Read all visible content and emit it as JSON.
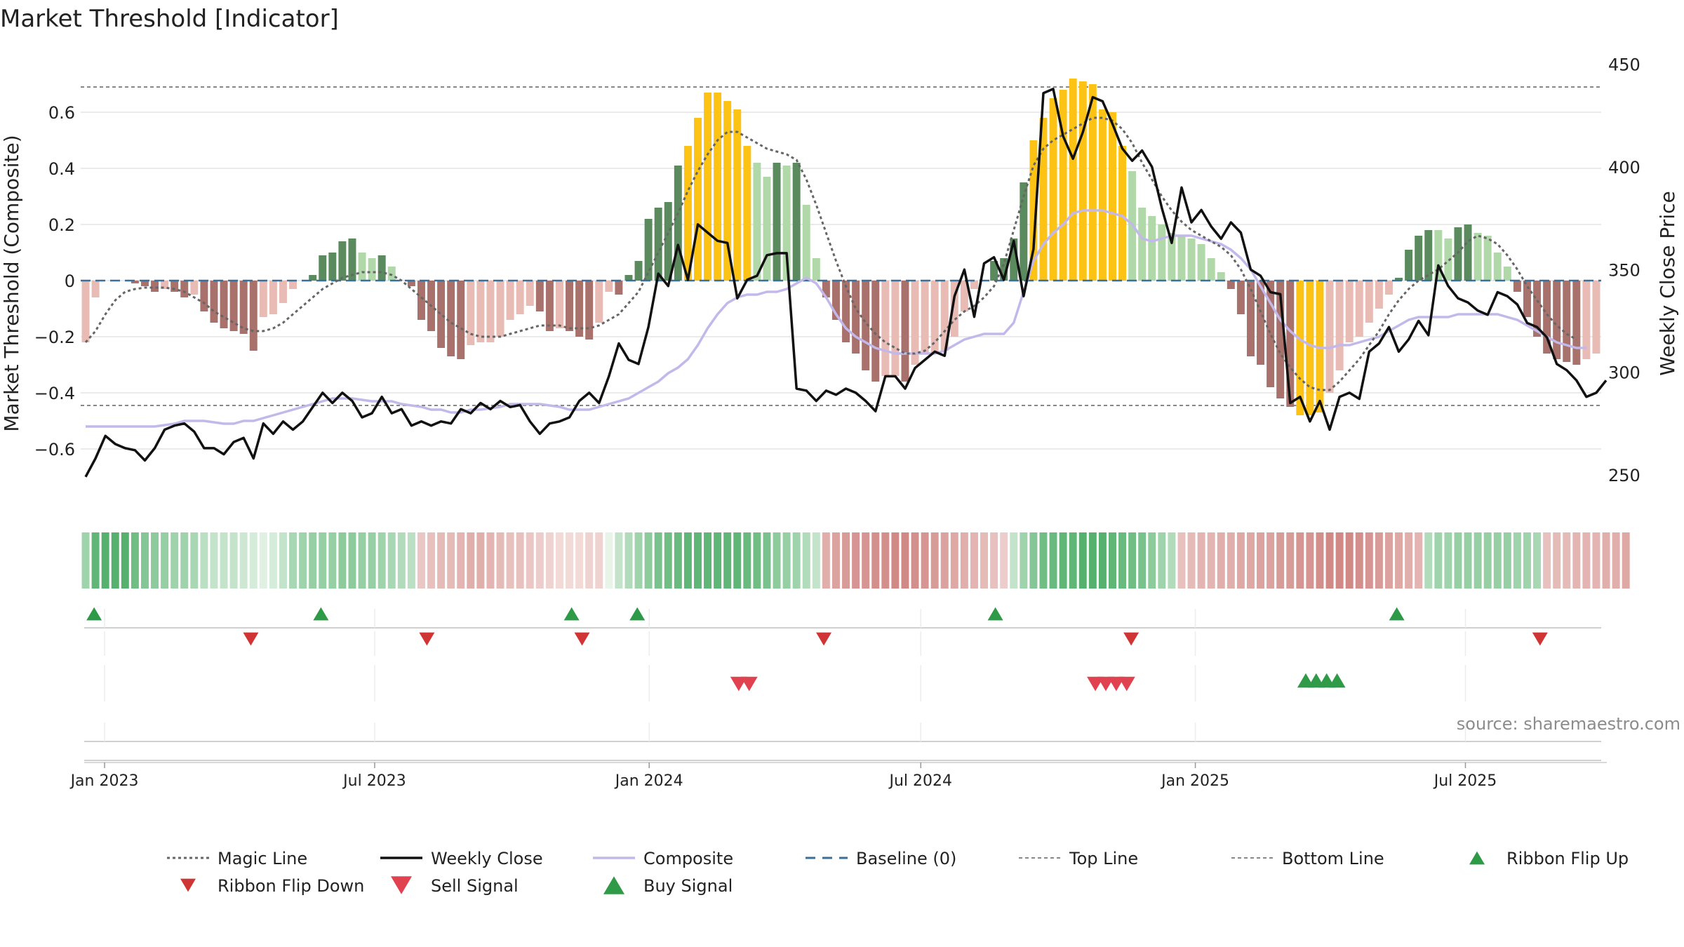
{
  "chart_data": {
    "type": "bar",
    "title": "Market Threshold [Indicator]",
    "ylabel": "Market Threshold (Composite)",
    "y2label": "Weekly Close Price",
    "ylim": [
      -0.78,
      0.8
    ],
    "y2lim": [
      238,
      454
    ],
    "yticks": [
      -0.6,
      -0.4,
      -0.2,
      0,
      0.2,
      0.4,
      0.6
    ],
    "ytick_labels": [
      "−0.6",
      "−0.4",
      "−0.2",
      "0",
      "0.2",
      "0.4",
      "0.6"
    ],
    "y2ticks": [
      250,
      300,
      350,
      400,
      450
    ],
    "y2tick_labels": [
      "250",
      "300",
      "350",
      "400",
      "450"
    ],
    "x_start": "2022-12-16",
    "x_end": "2025-09-30",
    "xticks": [
      {
        "date": "2023-01-01",
        "label": "Jan 2023"
      },
      {
        "date": "2023-07-01",
        "label": "Jul 2023"
      },
      {
        "date": "2024-01-01",
        "label": "Jan 2024"
      },
      {
        "date": "2024-07-01",
        "label": "Jul 2024"
      },
      {
        "date": "2025-01-01",
        "label": "Jan 2025"
      },
      {
        "date": "2025-07-01",
        "label": "Jul 2025"
      }
    ],
    "top_line": 0.69,
    "bottom_line": -0.445,
    "baseline": 0,
    "composite_bars": [
      -0.22,
      -0.06,
      0,
      0,
      0,
      -0.01,
      -0.02,
      -0.04,
      -0.03,
      -0.04,
      -0.06,
      -0.05,
      -0.11,
      -0.15,
      -0.17,
      -0.18,
      -0.19,
      -0.25,
      -0.13,
      -0.12,
      -0.08,
      -0.03,
      0,
      0.02,
      0.09,
      0.1,
      0.14,
      0.15,
      0.1,
      0.08,
      0.09,
      0.05,
      0,
      -0.02,
      -0.14,
      -0.18,
      -0.24,
      -0.27,
      -0.28,
      -0.23,
      -0.22,
      -0.22,
      -0.2,
      -0.14,
      -0.12,
      -0.09,
      -0.11,
      -0.18,
      -0.17,
      -0.18,
      -0.2,
      -0.21,
      -0.15,
      -0.04,
      -0.05,
      0.02,
      0.07,
      0.22,
      0.26,
      0.28,
      0.41,
      0.48,
      0.58,
      0.67,
      0.67,
      0.64,
      0.61,
      0.48,
      0.42,
      0.37,
      0.42,
      0.41,
      0.42,
      0.27,
      0.08,
      -0.06,
      -0.14,
      -0.22,
      -0.26,
      -0.32,
      -0.36,
      -0.34,
      -0.34,
      -0.36,
      -0.3,
      -0.26,
      -0.26,
      -0.25,
      -0.2,
      -0.11,
      -0.03,
      0,
      0.07,
      0.08,
      0.15,
      0.35,
      0.5,
      0.58,
      0.65,
      0.68,
      0.72,
      0.71,
      0.7,
      0.61,
      0.6,
      0.48,
      0.39,
      0.26,
      0.23,
      0.2,
      0.17,
      0.16,
      0.15,
      0.13,
      0.08,
      0.03,
      -0.03,
      -0.12,
      -0.27,
      -0.3,
      -0.38,
      -0.42,
      -0.45,
      -0.48,
      -0.48,
      -0.47,
      -0.4,
      -0.32,
      -0.22,
      -0.2,
      -0.15,
      -0.1,
      -0.05,
      0.01,
      0.11,
      0.16,
      0.18,
      0.18,
      0.15,
      0.19,
      0.2,
      0.17,
      0.16,
      0.1,
      0.05,
      -0.04,
      -0.13,
      -0.2,
      -0.26,
      -0.28,
      -0.29,
      -0.3,
      -0.28,
      -0.26
    ],
    "bar_colors": {
      "strong_pos": "#5a8a5d",
      "weak_pos": "#b1d8a9",
      "strong_neg": "#a8716b",
      "weak_neg": "#e8bbb5",
      "extreme": "#fcc315"
    },
    "weekly_close": [
      249,
      258,
      269,
      265,
      263,
      262,
      257,
      263,
      272,
      274,
      275,
      271,
      263,
      263,
      260,
      266,
      268,
      258,
      275,
      270,
      276,
      272,
      276,
      283,
      290,
      285,
      290,
      286,
      278,
      280,
      288,
      280,
      282,
      274,
      276,
      274,
      276,
      275,
      282,
      280,
      285,
      282,
      286,
      283,
      284,
      276,
      270,
      275,
      276,
      278,
      286,
      290,
      285,
      298,
      314,
      306,
      304,
      322,
      348,
      342,
      362,
      345,
      372,
      368,
      364,
      363,
      336,
      345,
      347,
      357,
      358,
      358,
      292,
      291,
      286,
      291,
      289,
      292,
      290,
      286,
      281,
      298,
      298,
      292,
      302,
      306,
      310,
      308,
      337,
      350,
      327,
      353,
      356,
      345,
      364,
      337,
      360,
      436,
      438,
      415,
      404,
      417,
      434,
      432,
      421,
      409,
      403,
      408,
      400,
      380,
      363,
      390,
      373,
      379,
      371,
      365,
      373,
      368,
      350,
      347,
      339,
      338,
      285,
      288,
      276,
      286,
      272,
      288,
      290,
      287,
      310,
      314,
      322,
      310,
      316,
      325,
      318,
      352,
      342,
      336,
      334,
      330,
      328,
      339,
      337,
      333,
      324,
      322,
      317,
      304,
      301,
      296,
      288,
      290,
      296
    ],
    "composite_line": [
      -0.52,
      -0.52,
      -0.52,
      -0.52,
      -0.52,
      -0.52,
      -0.52,
      -0.52,
      -0.515,
      -0.51,
      -0.5,
      -0.5,
      -0.5,
      -0.505,
      -0.51,
      -0.51,
      -0.5,
      -0.5,
      -0.49,
      -0.48,
      -0.47,
      -0.46,
      -0.45,
      -0.44,
      -0.43,
      -0.42,
      -0.42,
      -0.42,
      -0.425,
      -0.43,
      -0.43,
      -0.43,
      -0.44,
      -0.445,
      -0.45,
      -0.46,
      -0.46,
      -0.47,
      -0.47,
      -0.46,
      -0.46,
      -0.455,
      -0.45,
      -0.44,
      -0.44,
      -0.44,
      -0.44,
      -0.445,
      -0.45,
      -0.46,
      -0.46,
      -0.46,
      -0.45,
      -0.44,
      -0.43,
      -0.42,
      -0.4,
      -0.38,
      -0.36,
      -0.33,
      -0.31,
      -0.28,
      -0.23,
      -0.17,
      -0.12,
      -0.08,
      -0.06,
      -0.05,
      -0.05,
      -0.04,
      -0.04,
      -0.03,
      -0.01,
      0.01,
      -0.01,
      -0.06,
      -0.12,
      -0.17,
      -0.2,
      -0.22,
      -0.24,
      -0.25,
      -0.26,
      -0.26,
      -0.26,
      -0.26,
      -0.26,
      -0.25,
      -0.23,
      -0.21,
      -0.2,
      -0.19,
      -0.19,
      -0.19,
      -0.15,
      -0.04,
      0.07,
      0.13,
      0.17,
      0.2,
      0.24,
      0.25,
      0.25,
      0.25,
      0.24,
      0.23,
      0.2,
      0.15,
      0.14,
      0.15,
      0.16,
      0.16,
      0.16,
      0.15,
      0.14,
      0.13,
      0.11,
      0.08,
      0.04,
      -0.02,
      -0.08,
      -0.14,
      -0.18,
      -0.21,
      -0.23,
      -0.24,
      -0.24,
      -0.23,
      -0.23,
      -0.22,
      -0.21,
      -0.2,
      -0.18,
      -0.16,
      -0.14,
      -0.13,
      -0.13,
      -0.13,
      -0.13,
      -0.12,
      -0.12,
      -0.12,
      -0.12,
      -0.12,
      -0.13,
      -0.14,
      -0.16,
      -0.18,
      -0.2,
      -0.22,
      -0.23,
      -0.24,
      -0.24
    ],
    "magic_line": [
      -0.22,
      -0.18,
      -0.12,
      -0.07,
      -0.04,
      -0.03,
      -0.025,
      -0.025,
      -0.025,
      -0.03,
      -0.04,
      -0.06,
      -0.08,
      -0.11,
      -0.13,
      -0.15,
      -0.17,
      -0.18,
      -0.18,
      -0.17,
      -0.15,
      -0.12,
      -0.09,
      -0.06,
      -0.03,
      -0.01,
      0.01,
      0.02,
      0.03,
      0.03,
      0.03,
      0.02,
      0,
      -0.03,
      -0.06,
      -0.09,
      -0.12,
      -0.15,
      -0.17,
      -0.19,
      -0.2,
      -0.2,
      -0.2,
      -0.19,
      -0.18,
      -0.17,
      -0.16,
      -0.16,
      -0.16,
      -0.17,
      -0.17,
      -0.17,
      -0.16,
      -0.14,
      -0.12,
      -0.08,
      -0.04,
      0.03,
      0.1,
      0.17,
      0.24,
      0.32,
      0.39,
      0.45,
      0.5,
      0.53,
      0.53,
      0.51,
      0.49,
      0.47,
      0.46,
      0.45,
      0.43,
      0.36,
      0.27,
      0.17,
      0.07,
      -0.02,
      -0.1,
      -0.15,
      -0.19,
      -0.22,
      -0.24,
      -0.26,
      -0.26,
      -0.25,
      -0.22,
      -0.18,
      -0.14,
      -0.11,
      -0.09,
      -0.06,
      -0.02,
      0.06,
      0.18,
      0.3,
      0.41,
      0.47,
      0.5,
      0.52,
      0.54,
      0.56,
      0.58,
      0.58,
      0.57,
      0.54,
      0.49,
      0.42,
      0.36,
      0.3,
      0.25,
      0.21,
      0.18,
      0.16,
      0.14,
      0.12,
      0.09,
      0.04,
      -0.03,
      -0.11,
      -0.19,
      -0.26,
      -0.31,
      -0.35,
      -0.38,
      -0.39,
      -0.39,
      -0.36,
      -0.32,
      -0.28,
      -0.23,
      -0.18,
      -0.12,
      -0.07,
      -0.03,
      0,
      0.02,
      0.04,
      0.07,
      0.1,
      0.14,
      0.16,
      0.15,
      0.13,
      0.09,
      0.04,
      -0.02,
      -0.07,
      -0.12,
      -0.16,
      -0.19,
      -0.21
    ],
    "ribbon": [
      0.45,
      0.8,
      0.85,
      0.85,
      0.85,
      0.7,
      0.6,
      0.55,
      0.5,
      0.45,
      0.45,
      0.4,
      0.3,
      0.25,
      0.25,
      0.25,
      0.2,
      0.15,
      0.1,
      0.15,
      0.25,
      0.4,
      0.45,
      0.5,
      0.5,
      0.5,
      0.55,
      0.55,
      0.5,
      0.5,
      0.45,
      0.4,
      0.35,
      0.3,
      -0.25,
      -0.3,
      -0.35,
      -0.35,
      -0.4,
      -0.45,
      -0.45,
      -0.4,
      -0.35,
      -0.3,
      -0.3,
      -0.25,
      -0.2,
      -0.15,
      -0.1,
      -0.1,
      -0.1,
      -0.15,
      -0.15,
      0.05,
      0.25,
      0.35,
      0.45,
      0.55,
      0.65,
      0.7,
      0.75,
      0.8,
      0.8,
      0.8,
      0.8,
      0.8,
      0.8,
      0.75,
      0.7,
      0.65,
      0.55,
      0.5,
      0.45,
      0.35,
      0.25,
      -0.45,
      -0.55,
      -0.6,
      -0.65,
      -0.65,
      -0.7,
      -0.7,
      -0.75,
      -0.75,
      -0.7,
      -0.65,
      -0.6,
      -0.55,
      -0.5,
      -0.45,
      -0.4,
      -0.35,
      -0.3,
      -0.2,
      0.25,
      0.45,
      0.6,
      0.7,
      0.75,
      0.8,
      0.8,
      0.85,
      0.85,
      0.85,
      0.8,
      0.75,
      0.7,
      0.65,
      0.55,
      0.45,
      0.35,
      -0.3,
      -0.35,
      -0.4,
      -0.4,
      -0.45,
      -0.45,
      -0.5,
      -0.5,
      -0.55,
      -0.55,
      -0.6,
      -0.6,
      -0.65,
      -0.65,
      -0.7,
      -0.75,
      -0.75,
      -0.75,
      -0.7,
      -0.65,
      -0.6,
      -0.55,
      -0.5,
      -0.45,
      -0.4,
      0.35,
      0.45,
      0.45,
      0.5,
      0.5,
      0.5,
      0.5,
      0.5,
      0.5,
      0.45,
      0.45,
      0.4,
      -0.3,
      -0.35,
      -0.35,
      -0.4,
      -0.4,
      -0.4,
      -0.45,
      -0.45,
      -0.5
    ],
    "ribbon_flip_up": [
      "2022-12-25",
      "2023-05-26",
      "2023-11-10",
      "2023-12-24",
      "2024-08-20",
      "2025-05-16"
    ],
    "ribbon_flip_down": [
      "2023-04-09",
      "2023-08-05",
      "2023-11-17",
      "2024-04-27",
      "2024-11-19",
      "2025-08-20"
    ],
    "sell_signal": [
      "2024-03-01",
      "2024-03-08",
      "2024-10-26",
      "2024-11-02",
      "2024-11-09",
      "2024-11-16"
    ],
    "buy_signal": [
      "2025-03-16",
      "2025-03-23",
      "2025-03-30",
      "2025-04-06"
    ],
    "colors": {
      "magic_line": "#666666",
      "weekly_close": "#111111",
      "composite": "#c3b8ea",
      "baseline": "#3a6f9a",
      "ref_lines": "#888888",
      "flip_up": "#2d9a47",
      "flip_down": "#d03535",
      "sell": "#e0434f",
      "buy": "#2f9a47"
    },
    "legend": [
      {
        "key": "magic",
        "label": "Magic Line"
      },
      {
        "key": "close",
        "label": "Weekly Close"
      },
      {
        "key": "composite",
        "label": "Composite"
      },
      {
        "key": "baseline",
        "label": "Baseline (0)"
      },
      {
        "key": "top",
        "label": "Top Line"
      },
      {
        "key": "bottom",
        "label": "Bottom Line"
      },
      {
        "key": "flipup",
        "label": "Ribbon Flip Up"
      },
      {
        "key": "flipdown",
        "label": "Ribbon Flip Down"
      },
      {
        "key": "sell",
        "label": "Sell Signal"
      },
      {
        "key": "buy",
        "label": "Buy Signal"
      }
    ],
    "source": "source: sharemaestro.com"
  }
}
